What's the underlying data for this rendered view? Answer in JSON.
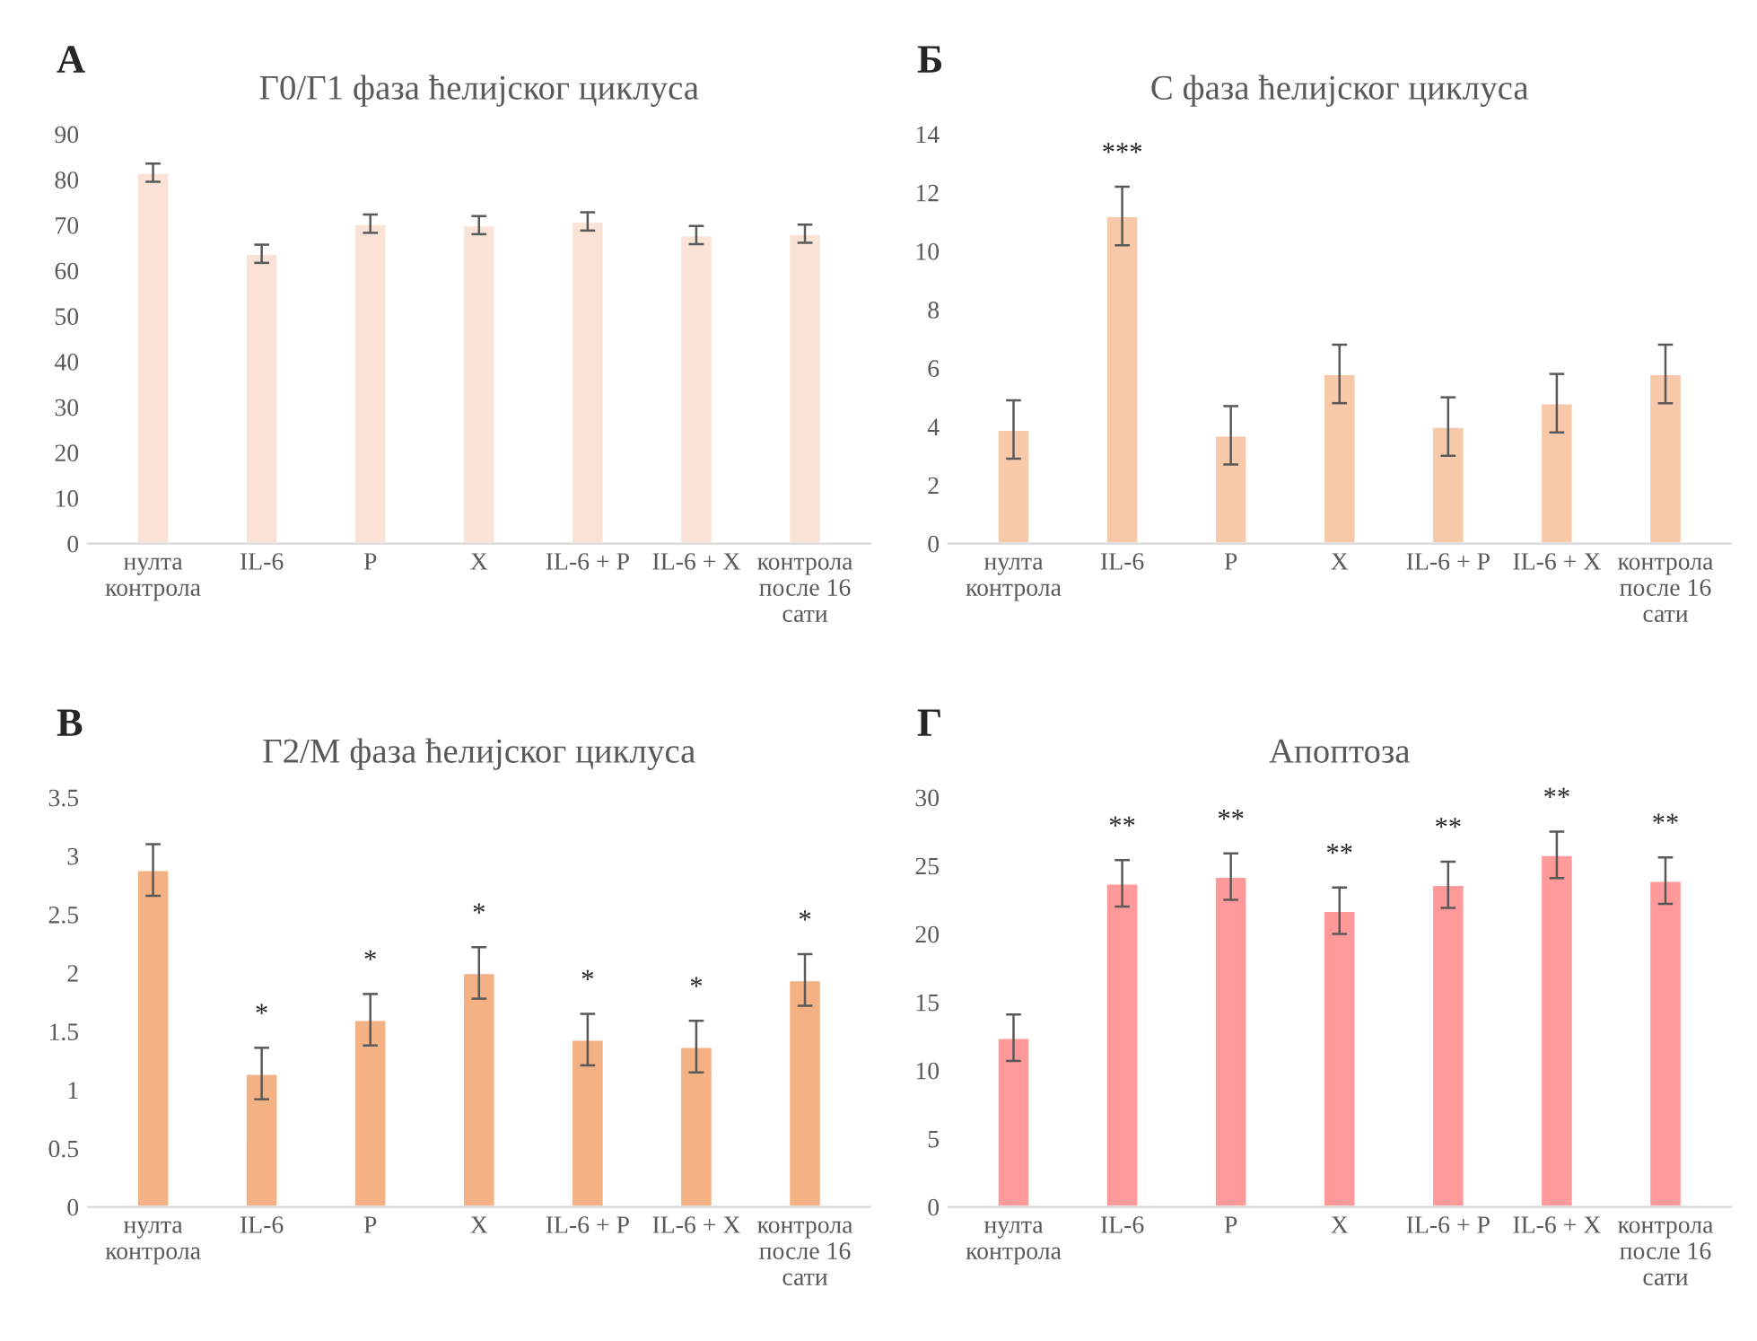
{
  "chart_data": [
    {
      "type": "bar",
      "title": "Г0/Г1 фаза ћелијског циклуса",
      "annotations": [
        "А"
      ],
      "categories": [
        "нулта\nконтрола",
        "IL-6",
        "P",
        "X",
        "IL-6 + P",
        "IL-6 + X",
        "контрола\nпосле 16\nсати"
      ],
      "values": [
        81.5,
        63.7,
        70.3,
        70.0,
        70.8,
        67.8,
        68.1
      ],
      "errors": [
        2,
        2,
        2,
        2,
        2,
        2,
        2
      ],
      "color": "#fae3d6",
      "ylim": [
        0,
        90
      ],
      "yticks": [
        0,
        10,
        20,
        30,
        40,
        50,
        60,
        70,
        80,
        90
      ],
      "grid": false
    },
    {
      "type": "bar",
      "title": "С фаза ћелијског циклуса",
      "annotations": [
        "Б"
      ],
      "value_labels": [
        null,
        "***",
        null,
        null,
        null,
        null,
        null
      ],
      "categories": [
        "нулта\nконтрола",
        "IL-6",
        "P",
        "X",
        "IL-6 + P",
        "IL-6 + X",
        "контрола\nпосле 16\nсати"
      ],
      "values": [
        3.9,
        11.2,
        3.7,
        5.8,
        4.0,
        4.8,
        5.8
      ],
      "errors": [
        1,
        1,
        1,
        1,
        1,
        1,
        1
      ],
      "color": "#f8c9a8",
      "ylim": [
        0,
        14
      ],
      "yticks": [
        0,
        2,
        4,
        6,
        8,
        10,
        12,
        14
      ],
      "grid": false
    },
    {
      "type": "bar",
      "title": "Г2/М фаза ћелијског циклуса",
      "annotations": [
        "В"
      ],
      "value_labels": [
        null,
        "*",
        "*",
        "*",
        "*",
        "*",
        "*"
      ],
      "categories": [
        "нулта\nконтрола",
        "IL-6",
        "P",
        "X",
        "IL-6 + P",
        "IL-6 + X",
        "контрола\nпосле 16\nсати"
      ],
      "values": [
        2.88,
        1.14,
        1.6,
        2.0,
        1.43,
        1.37,
        1.94
      ],
      "errors": [
        0.22,
        0.22,
        0.22,
        0.22,
        0.22,
        0.22,
        0.22
      ],
      "color": "#f4b183",
      "ylim": [
        0,
        3.5
      ],
      "yticks": [
        0,
        0.5,
        1,
        1.5,
        2,
        2.5,
        3,
        3.5
      ],
      "grid": false
    },
    {
      "type": "bar",
      "title": "Апоптоза",
      "annotations": [
        "Г"
      ],
      "value_labels": [
        null,
        "**",
        "**",
        "**",
        "**",
        "**",
        "**"
      ],
      "categories": [
        "нулта\nконтрола",
        "IL-6",
        "P",
        "X",
        "IL-6 + P",
        "IL-6 + X",
        "контрола\nпосле 16\nсати"
      ],
      "values": [
        12.4,
        23.7,
        24.2,
        21.7,
        23.6,
        25.8,
        23.9
      ],
      "errors": [
        1.7,
        1.7,
        1.7,
        1.7,
        1.7,
        1.7,
        1.7
      ],
      "color": "#ff999a",
      "ylim": [
        0,
        30
      ],
      "yticks": [
        0,
        5,
        10,
        15,
        20,
        25,
        30
      ],
      "grid": false
    }
  ]
}
